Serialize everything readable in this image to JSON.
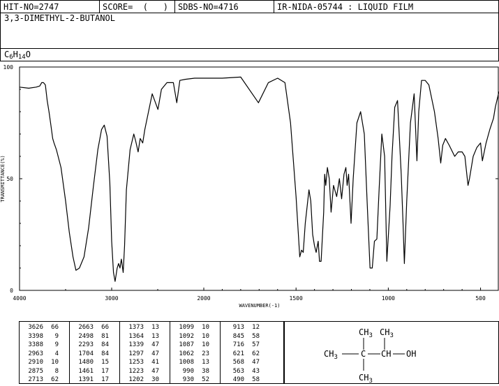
{
  "header": {
    "hit_no": "HIT-NO=2747",
    "score": "SCORE=  (   )",
    "sdbs_no": "SDBS-NO=4716",
    "ir_code": "IR-NIDA-05744 : LIQUID FILM"
  },
  "compound": {
    "name": "3,3-DIMETHYL-2-BUTANOL",
    "formula_parts": [
      "C",
      "6",
      "H",
      "14",
      "O"
    ]
  },
  "chart_data": {
    "type": "line",
    "xlabel": "WAVENUMBER(-1)",
    "ylabel": "TRANSMITTANCE(%)",
    "xlim": [
      4000,
      400
    ],
    "ylim": [
      0,
      100
    ],
    "x_ticks": [
      "4000",
      "3000",
      "2000",
      "1500",
      "1000",
      "500"
    ],
    "y_ticks": [
      "0",
      "50",
      "100"
    ],
    "grid": false,
    "series": [
      {
        "points": [
          [
            4000,
            91
          ],
          [
            3900,
            90.5
          ],
          [
            3820,
            91
          ],
          [
            3780,
            91.5
          ],
          [
            3760,
            93
          ],
          [
            3740,
            93
          ],
          [
            3720,
            92
          ],
          [
            3700,
            85
          ],
          [
            3680,
            80
          ],
          [
            3660,
            74
          ],
          [
            3640,
            68
          ],
          [
            3626,
            66
          ],
          [
            3600,
            63
          ],
          [
            3550,
            55
          ],
          [
            3500,
            40
          ],
          [
            3460,
            26
          ],
          [
            3420,
            15
          ],
          [
            3388,
            9
          ],
          [
            3350,
            10
          ],
          [
            3300,
            15
          ],
          [
            3250,
            28
          ],
          [
            3200,
            46
          ],
          [
            3150,
            63
          ],
          [
            3110,
            72
          ],
          [
            3080,
            74
          ],
          [
            3050,
            69
          ],
          [
            3020,
            48
          ],
          [
            3000,
            22
          ],
          [
            2980,
            8
          ],
          [
            2963,
            4
          ],
          [
            2940,
            10
          ],
          [
            2925,
            12
          ],
          [
            2910,
            10
          ],
          [
            2895,
            14
          ],
          [
            2875,
            8
          ],
          [
            2860,
            20
          ],
          [
            2840,
            45
          ],
          [
            2800,
            63
          ],
          [
            2760,
            70
          ],
          [
            2740,
            67
          ],
          [
            2713,
            62
          ],
          [
            2690,
            68
          ],
          [
            2663,
            66
          ],
          [
            2640,
            72
          ],
          [
            2600,
            80
          ],
          [
            2560,
            88
          ],
          [
            2498,
            81
          ],
          [
            2460,
            90
          ],
          [
            2400,
            93
          ],
          [
            2330,
            93
          ],
          [
            2293,
            84
          ],
          [
            2260,
            94
          ],
          [
            2200,
            94.5
          ],
          [
            2100,
            95
          ],
          [
            2000,
            95
          ],
          [
            1900,
            95
          ],
          [
            1800,
            95.5
          ],
          [
            1704,
            84
          ],
          [
            1650,
            93
          ],
          [
            1600,
            95
          ],
          [
            1560,
            93
          ],
          [
            1530,
            75
          ],
          [
            1500,
            42
          ],
          [
            1480,
            15
          ],
          [
            1470,
            18
          ],
          [
            1461,
            17
          ],
          [
            1450,
            30
          ],
          [
            1430,
            45
          ],
          [
            1420,
            40
          ],
          [
            1410,
            25
          ],
          [
            1400,
            20
          ],
          [
            1391,
            17
          ],
          [
            1380,
            22
          ],
          [
            1373,
            13
          ],
          [
            1364,
            13
          ],
          [
            1350,
            35
          ],
          [
            1345,
            52
          ],
          [
            1339,
            47
          ],
          [
            1330,
            55
          ],
          [
            1320,
            50
          ],
          [
            1310,
            35
          ],
          [
            1297,
            47
          ],
          [
            1280,
            42
          ],
          [
            1265,
            50
          ],
          [
            1253,
            41
          ],
          [
            1240,
            52
          ],
          [
            1230,
            55
          ],
          [
            1223,
            47
          ],
          [
            1215,
            52
          ],
          [
            1202,
            30
          ],
          [
            1190,
            50
          ],
          [
            1170,
            75
          ],
          [
            1150,
            80
          ],
          [
            1130,
            70
          ],
          [
            1115,
            40
          ],
          [
            1099,
            10
          ],
          [
            1092,
            10
          ],
          [
            1087,
            10
          ],
          [
            1075,
            22
          ],
          [
            1062,
            23
          ],
          [
            1050,
            45
          ],
          [
            1035,
            70
          ],
          [
            1020,
            60
          ],
          [
            1008,
            13
          ],
          [
            990,
            38
          ],
          [
            980,
            60
          ],
          [
            965,
            82
          ],
          [
            950,
            85
          ],
          [
            930,
            52
          ],
          [
            920,
            30
          ],
          [
            913,
            12
          ],
          [
            900,
            40
          ],
          [
            880,
            75
          ],
          [
            860,
            88
          ],
          [
            845,
            58
          ],
          [
            835,
            80
          ],
          [
            820,
            94
          ],
          [
            800,
            94
          ],
          [
            780,
            92
          ],
          [
            750,
            80
          ],
          [
            730,
            68
          ],
          [
            716,
            57
          ],
          [
            705,
            65
          ],
          [
            690,
            68
          ],
          [
            670,
            65
          ],
          [
            640,
            60
          ],
          [
            621,
            62
          ],
          [
            600,
            62
          ],
          [
            585,
            60
          ],
          [
            568,
            47
          ],
          [
            560,
            50
          ],
          [
            540,
            60
          ],
          [
            520,
            64
          ],
          [
            500,
            66
          ],
          [
            490,
            58
          ],
          [
            470,
            66
          ],
          [
            450,
            72
          ],
          [
            430,
            77
          ],
          [
            420,
            82
          ],
          [
            400,
            89
          ]
        ]
      }
    ]
  },
  "peak_table": {
    "columns": [
      [
        [
          "3626",
          "66"
        ],
        [
          "3398",
          "9"
        ],
        [
          "3388",
          "9"
        ],
        [
          "2963",
          "4"
        ],
        [
          "2910",
          "10"
        ],
        [
          "2875",
          "8"
        ],
        [
          "2713",
          "62"
        ]
      ],
      [
        [
          "2663",
          "66"
        ],
        [
          "2498",
          "81"
        ],
        [
          "2293",
          "84"
        ],
        [
          "1704",
          "84"
        ],
        [
          "1480",
          "15"
        ],
        [
          "1461",
          "17"
        ],
        [
          "1391",
          "17"
        ]
      ],
      [
        [
          "1373",
          "13"
        ],
        [
          "1364",
          "13"
        ],
        [
          "1339",
          "47"
        ],
        [
          "1297",
          "47"
        ],
        [
          "1253",
          "41"
        ],
        [
          "1223",
          "47"
        ],
        [
          "1202",
          "30"
        ]
      ],
      [
        [
          "1099",
          "10"
        ],
        [
          "1092",
          "10"
        ],
        [
          "1087",
          "10"
        ],
        [
          "1062",
          "23"
        ],
        [
          "1008",
          "13"
        ],
        [
          "990",
          "38"
        ],
        [
          "930",
          "52"
        ]
      ],
      [
        [
          "913",
          "12"
        ],
        [
          "845",
          "58"
        ],
        [
          "716",
          "57"
        ],
        [
          "621",
          "62"
        ],
        [
          "568",
          "47"
        ],
        [
          "563",
          "43"
        ],
        [
          "490",
          "58"
        ]
      ]
    ]
  },
  "structure": {
    "labels": {
      "top_left": "CH3",
      "top_right": "CH3",
      "left": "CH3",
      "center": "C",
      "ch": "CH",
      "oh": "OH",
      "bottom": "CH3"
    }
  }
}
